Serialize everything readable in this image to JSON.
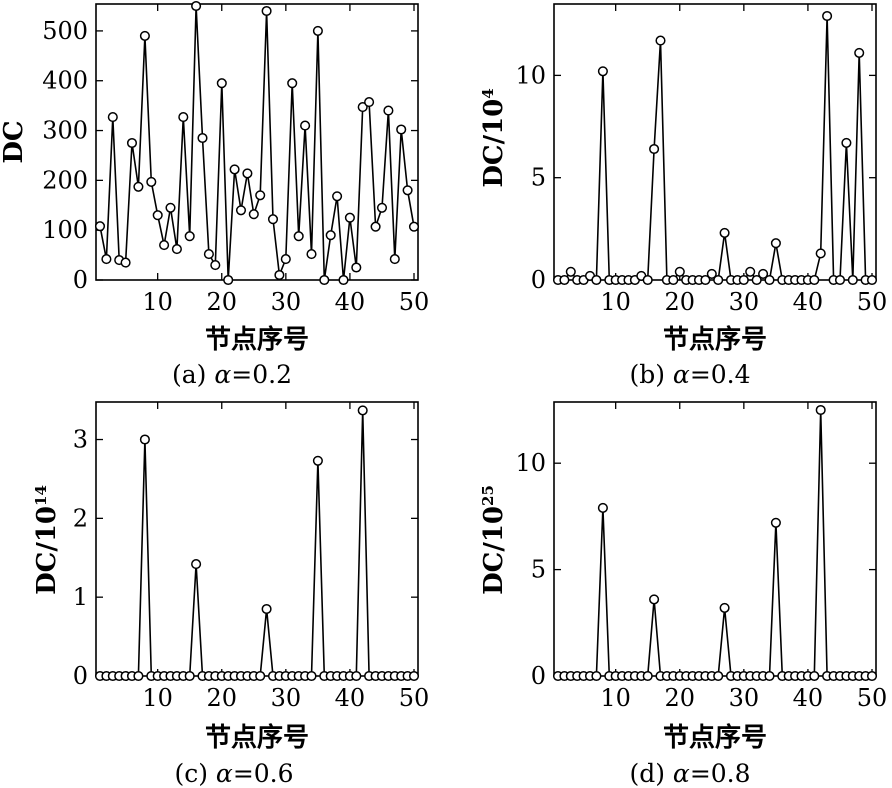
{
  "chart_data": [
    {
      "type": "line",
      "panel": "a",
      "caption_prefix": "(a) ",
      "alpha_symbol": "α",
      "caption_eq": "=0.2",
      "ylabel_main": "DC",
      "ylabel_exp": "",
      "xlabel": "节点序号",
      "xlim": [
        1,
        50
      ],
      "ylim": [
        0,
        550
      ],
      "xticks": [
        10,
        20,
        30,
        40,
        50
      ],
      "yticks": [
        0,
        100,
        200,
        300,
        400,
        500
      ],
      "x": [
        1,
        2,
        3,
        4,
        5,
        6,
        7,
        8,
        9,
        10,
        11,
        12,
        13,
        14,
        15,
        16,
        17,
        18,
        19,
        20,
        21,
        22,
        23,
        24,
        25,
        26,
        27,
        28,
        29,
        30,
        31,
        32,
        33,
        34,
        35,
        36,
        37,
        38,
        39,
        40,
        41,
        42,
        43,
        44,
        45,
        46,
        47,
        48,
        49,
        50
      ],
      "values": [
        108,
        42,
        327,
        40,
        35,
        275,
        187,
        490,
        197,
        130,
        70,
        145,
        62,
        327,
        88,
        550,
        285,
        52,
        30,
        395,
        0,
        222,
        140,
        214,
        132,
        170,
        540,
        122,
        10,
        42,
        395,
        88,
        310,
        52,
        500,
        0,
        90,
        168,
        0,
        125,
        25,
        347,
        357,
        107,
        145,
        340,
        42,
        302,
        180,
        107
      ]
    },
    {
      "type": "line",
      "panel": "b",
      "caption_prefix": "(b) ",
      "alpha_symbol": "α",
      "caption_eq": "=0.4",
      "ylabel_main": "DC/10",
      "ylabel_exp": "4",
      "xlabel": "节点序号",
      "xlim": [
        1,
        50
      ],
      "ylim": [
        0,
        13
      ],
      "xticks": [
        10,
        20,
        30,
        40,
        50
      ],
      "yticks": [
        0,
        5,
        10
      ],
      "x": [
        1,
        2,
        3,
        4,
        5,
        6,
        7,
        8,
        9,
        10,
        11,
        12,
        13,
        14,
        15,
        16,
        17,
        18,
        19,
        20,
        21,
        22,
        23,
        24,
        25,
        26,
        27,
        28,
        29,
        30,
        31,
        32,
        33,
        34,
        35,
        36,
        37,
        38,
        39,
        40,
        41,
        42,
        43,
        44,
        45,
        46,
        47,
        48,
        49,
        50
      ],
      "values": [
        0,
        0,
        0.4,
        0,
        0,
        0.2,
        0,
        10.2,
        0,
        0,
        0,
        0,
        0,
        0.2,
        0,
        6.4,
        11.7,
        0,
        0,
        0.4,
        0,
        0,
        0,
        0,
        0.3,
        0,
        2.3,
        0,
        0,
        0,
        0.4,
        0,
        0.3,
        0,
        1.8,
        0,
        0,
        0,
        0,
        0,
        0,
        1.3,
        12.9,
        0,
        0,
        6.7,
        0,
        11.1,
        0,
        0
      ]
    },
    {
      "type": "line",
      "panel": "c",
      "caption_prefix": "(c) ",
      "alpha_symbol": "α",
      "caption_eq": "=0.6",
      "ylabel_main": "DC/10",
      "ylabel_exp": "14",
      "xlabel": "节点序号",
      "xlim": [
        1,
        50
      ],
      "ylim": [
        0,
        3.4
      ],
      "xticks": [
        10,
        20,
        30,
        40,
        50
      ],
      "yticks": [
        0,
        1,
        2,
        3
      ],
      "x": [
        1,
        2,
        3,
        4,
        5,
        6,
        7,
        8,
        9,
        10,
        11,
        12,
        13,
        14,
        15,
        16,
        17,
        18,
        19,
        20,
        21,
        22,
        23,
        24,
        25,
        26,
        27,
        28,
        29,
        30,
        31,
        32,
        33,
        34,
        35,
        36,
        37,
        38,
        39,
        40,
        41,
        42,
        43,
        44,
        45,
        46,
        47,
        48,
        49,
        50
      ],
      "values": [
        0,
        0,
        0,
        0,
        0,
        0,
        0,
        3.0,
        0,
        0,
        0,
        0,
        0,
        0,
        0,
        1.42,
        0,
        0,
        0,
        0,
        0,
        0,
        0,
        0,
        0,
        0,
        0.85,
        0,
        0,
        0,
        0,
        0,
        0,
        0,
        2.73,
        0,
        0,
        0,
        0,
        0,
        0,
        3.37,
        0,
        0,
        0,
        0,
        0,
        0,
        0,
        0
      ]
    },
    {
      "type": "line",
      "panel": "d",
      "caption_prefix": "(d) ",
      "alpha_symbol": "α",
      "caption_eq": "=0.8",
      "ylabel_main": "DC/10",
      "ylabel_exp": "25",
      "xlabel": "节点序号",
      "xlim": [
        1,
        50
      ],
      "ylim": [
        0,
        12.5
      ],
      "xticks": [
        10,
        20,
        30,
        40,
        50
      ],
      "yticks": [
        0,
        5,
        10
      ],
      "x": [
        1,
        2,
        3,
        4,
        5,
        6,
        7,
        8,
        9,
        10,
        11,
        12,
        13,
        14,
        15,
        16,
        17,
        18,
        19,
        20,
        21,
        22,
        23,
        24,
        25,
        26,
        27,
        28,
        29,
        30,
        31,
        32,
        33,
        34,
        35,
        36,
        37,
        38,
        39,
        40,
        41,
        42,
        43,
        44,
        45,
        46,
        47,
        48,
        49,
        50
      ],
      "values": [
        0,
        0,
        0,
        0,
        0,
        0,
        0,
        7.9,
        0,
        0,
        0,
        0,
        0,
        0,
        0,
        3.6,
        0,
        0,
        0,
        0,
        0,
        0,
        0,
        0,
        0,
        0,
        3.2,
        0,
        0,
        0,
        0,
        0,
        0,
        0,
        7.2,
        0,
        0,
        0,
        0,
        0,
        0,
        12.5,
        0,
        0,
        0,
        0,
        0,
        0,
        0,
        0
      ]
    }
  ]
}
